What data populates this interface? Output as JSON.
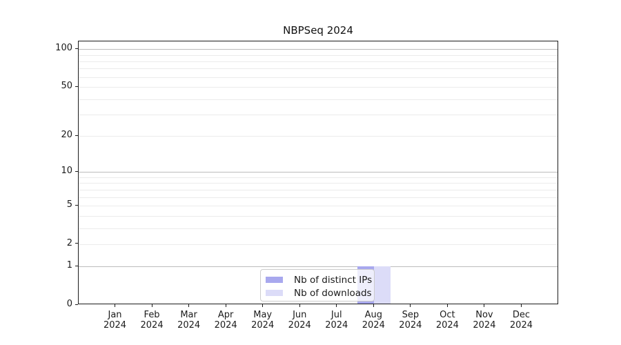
{
  "chart_data": {
    "type": "bar",
    "title": "NBPSeq 2024",
    "categories": [
      "Jan",
      "Feb",
      "Mar",
      "Apr",
      "May",
      "Jun",
      "Jul",
      "Aug",
      "Sep",
      "Oct",
      "Nov",
      "Dec"
    ],
    "year_label": "2024",
    "series": [
      {
        "name": "Nb of distinct IPs",
        "color": "#a8a8ee",
        "values": [
          0,
          0,
          0,
          0,
          0,
          0,
          0,
          1,
          0,
          0,
          0,
          0
        ]
      },
      {
        "name": "Nb of downloads",
        "color": "#dcdcf8",
        "values": [
          0,
          0,
          0,
          0,
          0,
          0,
          0,
          1,
          0,
          0,
          0,
          0
        ]
      }
    ],
    "y_axis": {
      "scale": "log1p",
      "ticks": [
        0,
        1,
        2,
        5,
        10,
        20,
        50,
        100
      ],
      "major_grid": [
        1,
        10,
        100
      ],
      "minor_grid": [
        2,
        3,
        4,
        5,
        6,
        7,
        8,
        9,
        20,
        30,
        40,
        50,
        60,
        70,
        80,
        90
      ],
      "max": 115
    },
    "xlabel": "",
    "ylabel": "",
    "grid": true,
    "legend_position": "lower center"
  },
  "colors": {
    "major_grid": "#bbbbbb",
    "minor_grid": "#ebebeb",
    "spine": "#1a1a1a",
    "text": "#1a1a1a"
  }
}
